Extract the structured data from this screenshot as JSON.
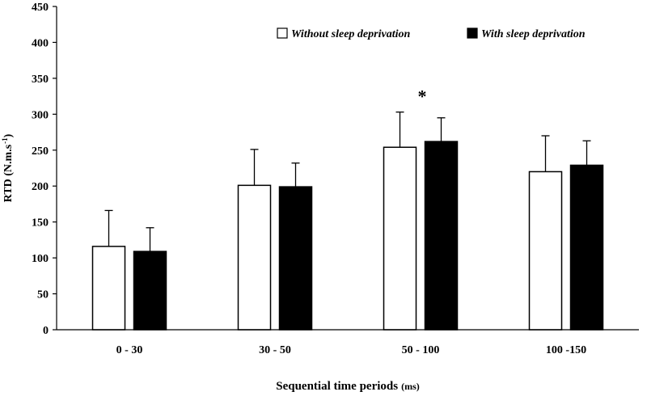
{
  "chart_data": {
    "type": "bar",
    "title": "",
    "xlabel": "Sequential time periods",
    "xlabel_unit": "(ms)",
    "ylabel": "RTD (N.m.s",
    "ylabel_sup": "-1",
    "ylabel_close": ")",
    "ylim": [
      0,
      450
    ],
    "yticks": [
      0,
      50,
      100,
      150,
      200,
      250,
      300,
      350,
      400,
      450
    ],
    "grid": false,
    "legend_position": "top-right",
    "categories": [
      "0 - 30",
      "30 - 50",
      "50 - 100",
      "100 -150"
    ],
    "series": [
      {
        "name": "Without sleep deprivation",
        "color": "#ffffff",
        "values": [
          116,
          201,
          254,
          220
        ],
        "errors": [
          50,
          50,
          49,
          50
        ]
      },
      {
        "name": "With sleep deprivation",
        "color": "#000000",
        "values": [
          109,
          199,
          262,
          229
        ],
        "errors": [
          33,
          33,
          33,
          34
        ]
      }
    ],
    "annotations": [
      {
        "text": "*",
        "category_index": 2
      }
    ]
  }
}
